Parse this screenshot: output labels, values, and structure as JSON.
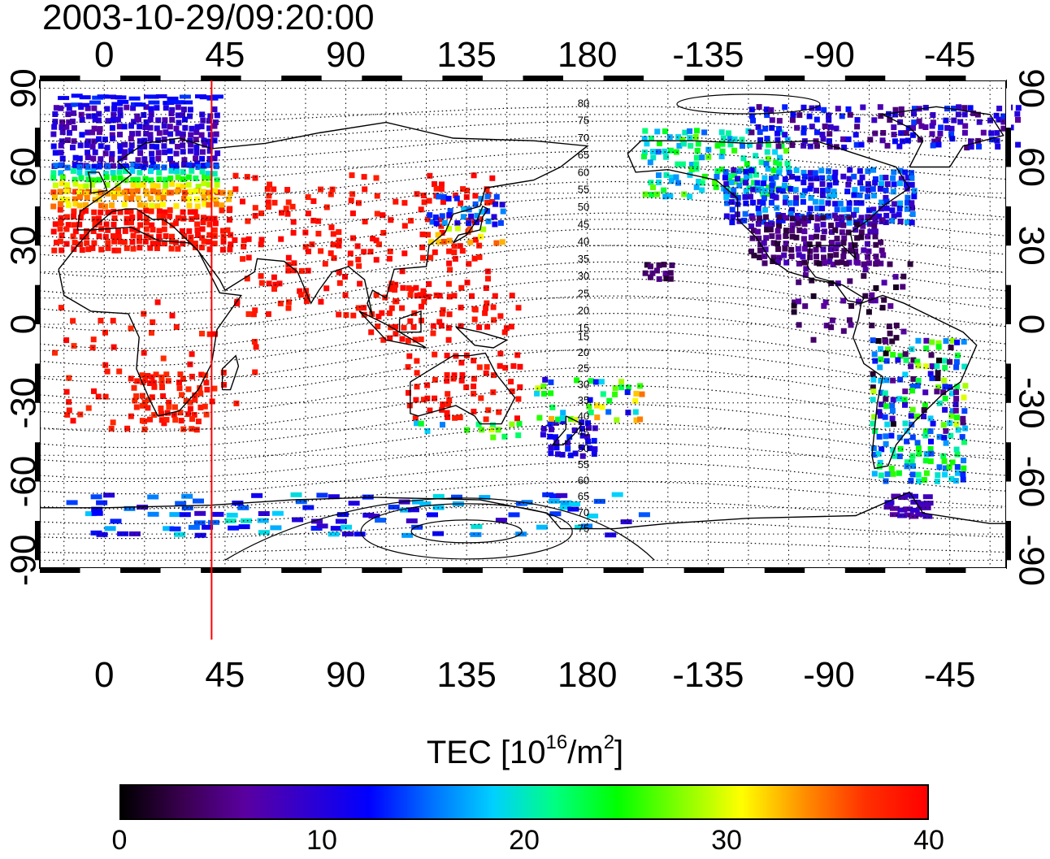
{
  "title": "2003-10-29/09:20:00",
  "map": {
    "lon_ticks": [
      "0",
      "45",
      "90",
      "135",
      "180",
      "-135",
      "-90",
      "-45"
    ],
    "lon_tick_values": [
      0,
      45,
      90,
      135,
      180,
      225,
      270,
      315
    ],
    "lat_ticks": [
      "90",
      "60",
      "30",
      "0",
      "-30",
      "-60",
      "-90"
    ],
    "lat_tick_values": [
      90,
      60,
      30,
      0,
      -30,
      -60,
      -90
    ],
    "lon_range": [
      -24,
      336
    ],
    "lat_range": [
      -93,
      93
    ],
    "marker_longitude": 40,
    "marker_color": "#ff0000",
    "contour_labels": {
      "north": [
        "80",
        "75",
        "70",
        "65",
        "60",
        "55",
        "50",
        "45",
        "40",
        "35",
        "30",
        "25",
        "20",
        "15"
      ],
      "south": [
        "15",
        "20",
        "25",
        "30",
        "35",
        "40",
        "45",
        "50",
        "55",
        "60",
        "65",
        "70",
        "75"
      ]
    }
  },
  "colorbar": {
    "title_main": "TEC  [10",
    "title_exp1": "16",
    "title_mid": "/m",
    "title_exp2": "2",
    "title_end": "]",
    "ticks": [
      "0",
      "10",
      "20",
      "30",
      "40"
    ],
    "tick_values": [
      0,
      10,
      20,
      30,
      40
    ],
    "range": [
      0,
      40
    ],
    "colors": [
      "#000000",
      "#3a0050",
      "#5a00a0",
      "#3000d0",
      "#0000ff",
      "#0070ff",
      "#00d0ff",
      "#00ff80",
      "#00ff00",
      "#80ff00",
      "#ffff00",
      "#ff9000",
      "#ff3000",
      "#ff0000"
    ]
  }
}
